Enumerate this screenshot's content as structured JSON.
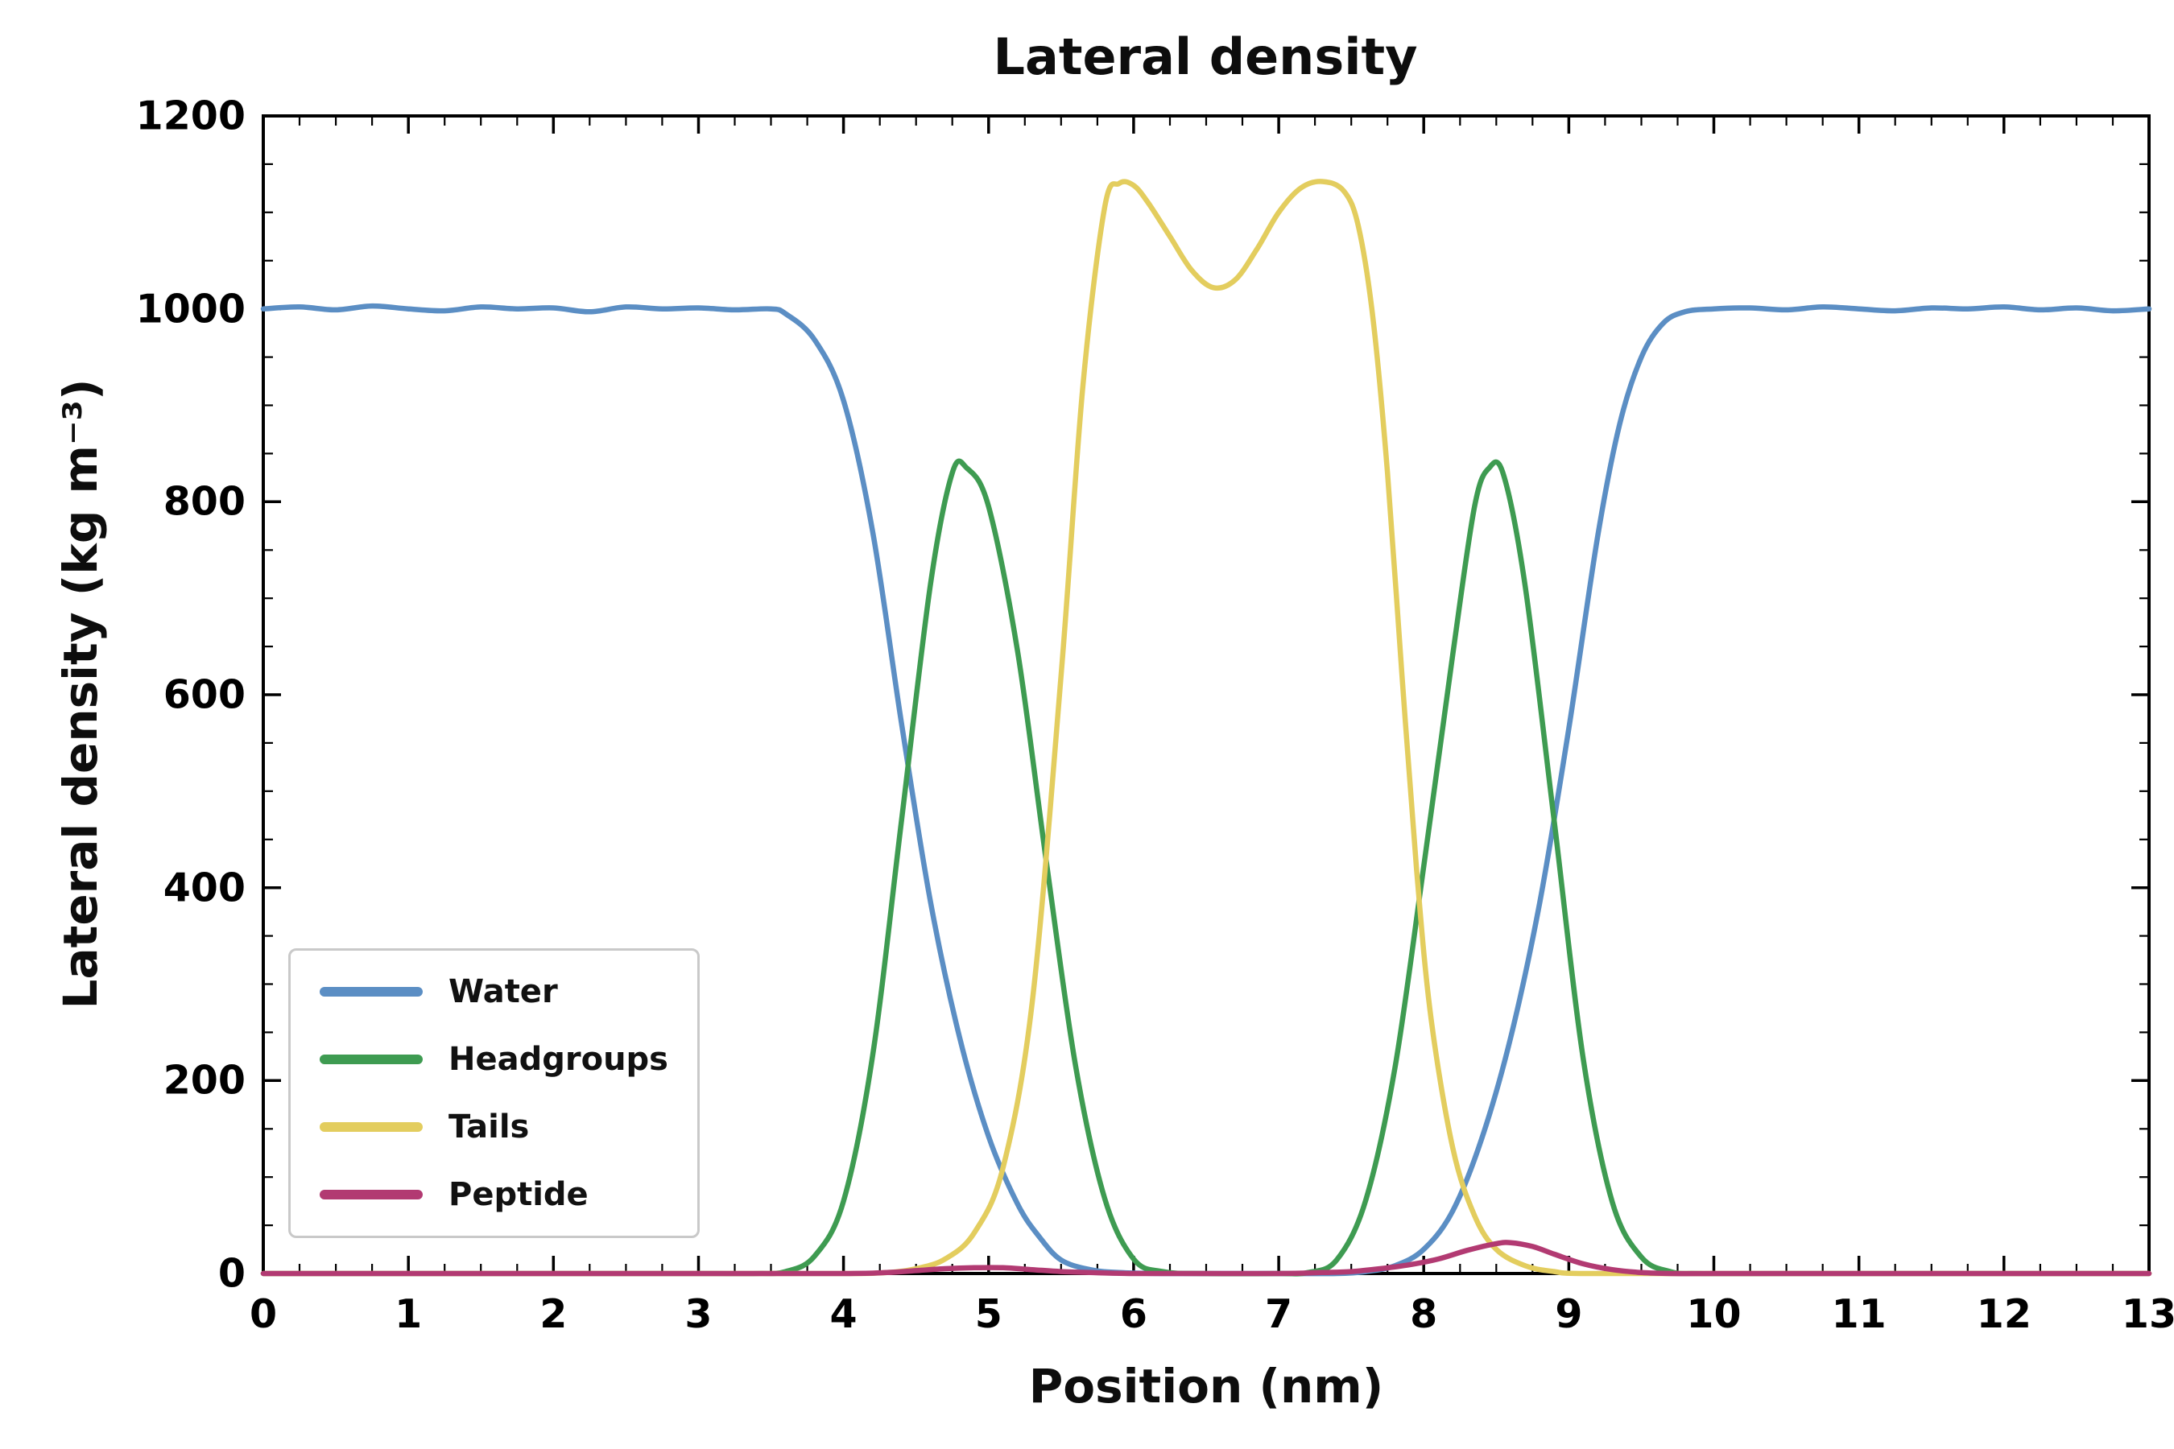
{
  "chart_data": {
    "type": "line",
    "title": "Lateral density",
    "xlabel": "Position (nm)",
    "ylabel": "Lateral density (kg m⁻³)",
    "xlim": [
      0,
      13
    ],
    "ylim": [
      0,
      1200
    ],
    "x_ticks": [
      0,
      1,
      2,
      3,
      4,
      5,
      6,
      7,
      8,
      9,
      10,
      11,
      12,
      13
    ],
    "y_ticks": [
      0,
      200,
      400,
      600,
      800,
      1000,
      1200
    ],
    "x_minor_step": 0.25,
    "y_minor_step": 50,
    "grid": false,
    "tick_direction": "in",
    "legend_position": "lower-left",
    "axis_color": "#000000",
    "background_color": "#ffffff",
    "series": [
      {
        "name": "Water",
        "color": "#5b8ec4",
        "points": [
          [
            0,
            1000
          ],
          [
            0.25,
            1002
          ],
          [
            0.5,
            999
          ],
          [
            0.75,
            1003
          ],
          [
            1,
            1000
          ],
          [
            1.25,
            998
          ],
          [
            1.5,
            1002
          ],
          [
            1.75,
            1000
          ],
          [
            2,
            1001
          ],
          [
            2.25,
            997
          ],
          [
            2.5,
            1002
          ],
          [
            2.75,
            1000
          ],
          [
            3,
            1001
          ],
          [
            3.25,
            999
          ],
          [
            3.5,
            1000
          ],
          [
            3.6,
            995
          ],
          [
            3.8,
            968
          ],
          [
            4,
            905
          ],
          [
            4.2,
            770
          ],
          [
            4.4,
            570
          ],
          [
            4.6,
            385
          ],
          [
            4.8,
            245
          ],
          [
            5,
            142
          ],
          [
            5.2,
            72
          ],
          [
            5.35,
            38
          ],
          [
            5.5,
            14
          ],
          [
            5.7,
            4
          ],
          [
            5.9,
            1
          ],
          [
            6.2,
            0
          ],
          [
            6.6,
            0
          ],
          [
            7,
            0
          ],
          [
            7.4,
            0
          ],
          [
            7.6,
            2
          ],
          [
            7.8,
            8
          ],
          [
            8,
            25
          ],
          [
            8.2,
            65
          ],
          [
            8.4,
            140
          ],
          [
            8.6,
            245
          ],
          [
            8.8,
            385
          ],
          [
            9,
            565
          ],
          [
            9.2,
            765
          ],
          [
            9.35,
            880
          ],
          [
            9.5,
            950
          ],
          [
            9.65,
            985
          ],
          [
            9.8,
            997
          ],
          [
            10,
            1000
          ],
          [
            10.25,
            1001
          ],
          [
            10.5,
            999
          ],
          [
            10.75,
            1002
          ],
          [
            11,
            1000
          ],
          [
            11.25,
            998
          ],
          [
            11.5,
            1001
          ],
          [
            11.75,
            1000
          ],
          [
            12,
            1002
          ],
          [
            12.25,
            999
          ],
          [
            12.5,
            1001
          ],
          [
            12.75,
            998
          ],
          [
            13,
            1000
          ]
        ]
      },
      {
        "name": "Headgroups",
        "color": "#3e9b51",
        "points": [
          [
            0,
            0
          ],
          [
            1,
            0
          ],
          [
            2,
            0
          ],
          [
            3,
            0
          ],
          [
            3.4,
            0
          ],
          [
            3.6,
            2
          ],
          [
            3.8,
            18
          ],
          [
            4,
            75
          ],
          [
            4.2,
            225
          ],
          [
            4.4,
            470
          ],
          [
            4.6,
            715
          ],
          [
            4.75,
            830
          ],
          [
            4.85,
            835
          ],
          [
            5,
            795
          ],
          [
            5.2,
            645
          ],
          [
            5.4,
            425
          ],
          [
            5.6,
            215
          ],
          [
            5.8,
            78
          ],
          [
            6,
            15
          ],
          [
            6.2,
            2
          ],
          [
            6.5,
            0
          ],
          [
            7,
            0
          ],
          [
            7.2,
            1
          ],
          [
            7.4,
            14
          ],
          [
            7.6,
            76
          ],
          [
            7.8,
            212
          ],
          [
            8,
            422
          ],
          [
            8.2,
            642
          ],
          [
            8.35,
            795
          ],
          [
            8.45,
            835
          ],
          [
            8.55,
            828
          ],
          [
            8.7,
            712
          ],
          [
            8.9,
            468
          ],
          [
            9.1,
            222
          ],
          [
            9.3,
            74
          ],
          [
            9.5,
            17
          ],
          [
            9.7,
            2
          ],
          [
            9.9,
            0
          ],
          [
            10.5,
            0
          ],
          [
            11.5,
            0
          ],
          [
            12.5,
            0
          ],
          [
            13,
            0
          ]
        ]
      },
      {
        "name": "Tails",
        "color": "#e3cd5e",
        "points": [
          [
            0,
            0
          ],
          [
            1,
            0
          ],
          [
            2,
            0
          ],
          [
            3,
            0
          ],
          [
            4,
            0
          ],
          [
            4.3,
            1
          ],
          [
            4.5,
            5
          ],
          [
            4.7,
            15
          ],
          [
            4.9,
            42
          ],
          [
            5.1,
            110
          ],
          [
            5.3,
            280
          ],
          [
            5.5,
            620
          ],
          [
            5.65,
            920
          ],
          [
            5.8,
            1105
          ],
          [
            5.9,
            1130
          ],
          [
            6,
            1128
          ],
          [
            6.1,
            1110
          ],
          [
            6.25,
            1075
          ],
          [
            6.4,
            1040
          ],
          [
            6.55,
            1022
          ],
          [
            6.7,
            1030
          ],
          [
            6.85,
            1062
          ],
          [
            7,
            1100
          ],
          [
            7.15,
            1125
          ],
          [
            7.3,
            1132
          ],
          [
            7.45,
            1122
          ],
          [
            7.55,
            1085
          ],
          [
            7.65,
            990
          ],
          [
            7.75,
            830
          ],
          [
            7.85,
            620
          ],
          [
            7.95,
            420
          ],
          [
            8.05,
            265
          ],
          [
            8.2,
            130
          ],
          [
            8.35,
            60
          ],
          [
            8.5,
            25
          ],
          [
            8.7,
            8
          ],
          [
            8.9,
            2
          ],
          [
            9.1,
            0
          ],
          [
            10,
            0
          ],
          [
            11,
            0
          ],
          [
            12,
            0
          ],
          [
            13,
            0
          ]
        ]
      },
      {
        "name": "Peptide",
        "color": "#b23a72",
        "points": [
          [
            0,
            0
          ],
          [
            1,
            0
          ],
          [
            2,
            0
          ],
          [
            3,
            0
          ],
          [
            4,
            0
          ],
          [
            4.3,
            1
          ],
          [
            4.5,
            3
          ],
          [
            4.7,
            5
          ],
          [
            4.9,
            6
          ],
          [
            5.1,
            6
          ],
          [
            5.3,
            4
          ],
          [
            5.5,
            2
          ],
          [
            5.7,
            1
          ],
          [
            6,
            0
          ],
          [
            6.5,
            0
          ],
          [
            7,
            0
          ],
          [
            7.3,
            1
          ],
          [
            7.5,
            2
          ],
          [
            7.7,
            5
          ],
          [
            7.9,
            9
          ],
          [
            8.1,
            15
          ],
          [
            8.3,
            24
          ],
          [
            8.5,
            31
          ],
          [
            8.6,
            32
          ],
          [
            8.75,
            28
          ],
          [
            8.9,
            20
          ],
          [
            9.1,
            10
          ],
          [
            9.3,
            4
          ],
          [
            9.5,
            1
          ],
          [
            9.7,
            0
          ],
          [
            10,
            0
          ],
          [
            11,
            0
          ],
          [
            12,
            0
          ],
          [
            13,
            0
          ]
        ]
      }
    ]
  }
}
